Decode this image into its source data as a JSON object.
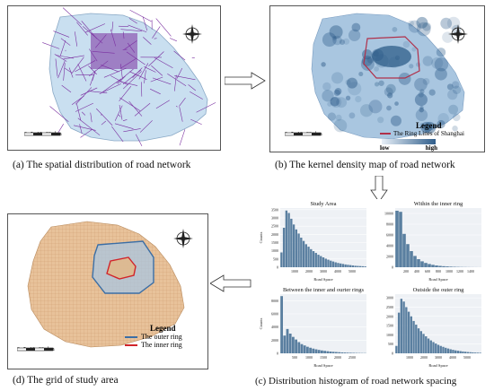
{
  "captions": {
    "a": "(a) The spatial distribution of road network",
    "b": "(b) The kernel density map of road network",
    "c": "(c) Distribution histogram of road network spacing",
    "d": "(d) The grid of study area"
  },
  "compass": {
    "n": "N",
    "s": "S",
    "e": "E",
    "w": "W"
  },
  "scalebar": {
    "ticks": [
      "0",
      "5",
      "10",
      "20"
    ],
    "unit": "km"
  },
  "panel_b_legend": {
    "title": "Legend",
    "item": "The Ring Lines of Shanghai",
    "low": "low",
    "high": "high"
  },
  "panel_d_legend": {
    "title": "Legend",
    "outer": "The outer ring",
    "inner": "The inner ring"
  },
  "colors": {
    "road_purple": "#7a2fa0",
    "land_blue": "#c9dff0",
    "density_dark": "#2f5d8a",
    "ring_red": "#b0304a",
    "grid_tan": "#e0b88c",
    "outer_ring": "#3b6ea5",
    "inner_ring": "#d1242a",
    "hist_bar": "#5a7fa0"
  },
  "chart_data": [
    {
      "type": "bar",
      "title": "Study Area",
      "xlabel": "Road Space",
      "ylabel": "Counts",
      "xticks": [
        "1000",
        "2000",
        "3000",
        "4000",
        "5000"
      ],
      "yticks": [
        "0",
        "500",
        "1000",
        "1500",
        "2000",
        "2500",
        "3000",
        "3500"
      ],
      "ylim": [
        0,
        3600
      ],
      "values": [
        900,
        2400,
        3450,
        3300,
        2950,
        2600,
        2300,
        2050,
        1800,
        1600,
        1400,
        1250,
        1100,
        980,
        870,
        760,
        680,
        600,
        520,
        460,
        400,
        350,
        300,
        260,
        230,
        200,
        170,
        150,
        130,
        110,
        90,
        80,
        70,
        60,
        50
      ]
    },
    {
      "type": "bar",
      "title": "Within the inner ring",
      "xlabel": "Road Space",
      "ylabel": "",
      "xticks": [
        "200",
        "400",
        "600",
        "800",
        "1000",
        "1200",
        "1400"
      ],
      "yticks": [
        "0",
        "2000",
        "4000",
        "6000",
        "8000",
        "10000"
      ],
      "ylim": [
        0,
        11000
      ],
      "values": [
        10500,
        10300,
        6200,
        4300,
        3000,
        2100,
        1500,
        1100,
        800,
        600,
        450,
        330,
        250,
        190,
        150,
        110,
        80,
        60,
        45,
        35,
        25,
        20,
        15,
        10
      ]
    },
    {
      "type": "bar",
      "title": "Between the inner and ourter rings",
      "xlabel": "Road Space",
      "ylabel": "Counts",
      "xticks": [
        "500",
        "1000",
        "1500",
        "2000",
        "2500"
      ],
      "yticks": [
        "0",
        "2000",
        "4000",
        "6000",
        "8000"
      ],
      "ylim": [
        0,
        9000
      ],
      "values": [
        8700,
        2700,
        3700,
        3000,
        2500,
        2100,
        1700,
        1400,
        1200,
        1000,
        850,
        720,
        610,
        520,
        440,
        380,
        320,
        270,
        230,
        200,
        170,
        140,
        120,
        100,
        85,
        70,
        60,
        50,
        40,
        35
      ]
    },
    {
      "type": "bar",
      "title": "Outside the outer ring",
      "xlabel": "Road Space",
      "ylabel": "",
      "xticks": [
        "1000",
        "2000",
        "3000",
        "4000",
        "5000"
      ],
      "yticks": [
        "0",
        "500",
        "1000",
        "1500",
        "2000",
        "2500",
        "3000"
      ],
      "ylim": [
        0,
        3200
      ],
      "values": [
        400,
        2200,
        2950,
        2800,
        2500,
        2250,
        2000,
        1750,
        1550,
        1350,
        1200,
        1050,
        920,
        800,
        700,
        610,
        530,
        460,
        400,
        350,
        300,
        260,
        220,
        190,
        160,
        140,
        120,
        100,
        85,
        70,
        60,
        50,
        40,
        35,
        30
      ]
    }
  ]
}
